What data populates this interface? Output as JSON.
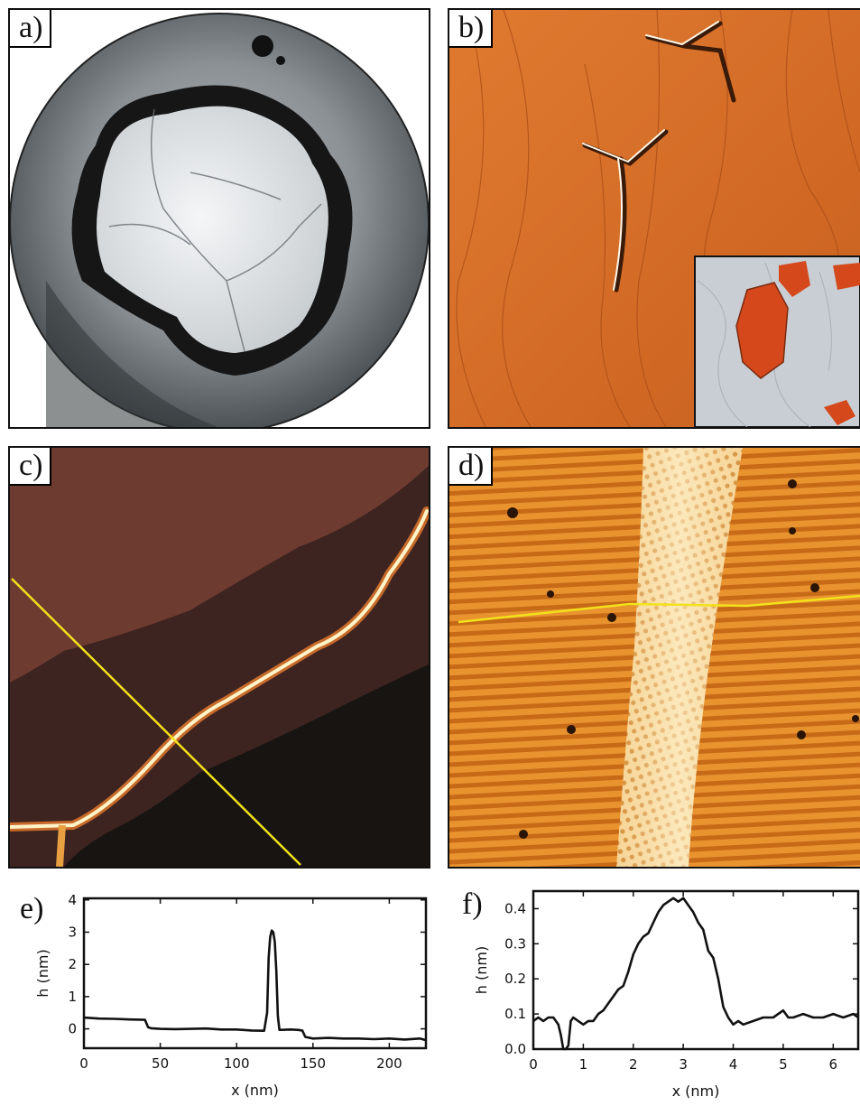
{
  "panels": {
    "a": {
      "label": "a)"
    },
    "b": {
      "label": "b)"
    },
    "c": {
      "label": "c)"
    },
    "d": {
      "label": "d)"
    }
  },
  "colors": {
    "profile_line": "#f2e21a",
    "afm_orange": "#d86a26",
    "afm_dark": "#2a1a14",
    "stm_orange": "#e08a2e"
  },
  "chart_data": [
    {
      "panel_label": "e)",
      "type": "line",
      "xlabel": "x (nm)",
      "ylabel": "h (nm)",
      "xlim": [
        0,
        224
      ],
      "ylim": [
        -0.6,
        4.05
      ],
      "xticks": [
        0,
        50,
        100,
        150,
        200
      ],
      "yticks": [
        0,
        1,
        2,
        3,
        4
      ],
      "grid": false,
      "x": [
        0,
        10,
        20,
        30,
        40,
        42,
        44,
        50,
        60,
        70,
        80,
        90,
        100,
        110,
        118,
        120,
        121,
        122,
        123,
        124,
        125,
        126,
        127,
        128,
        130,
        135,
        140,
        143,
        145,
        150,
        160,
        170,
        180,
        190,
        200,
        210,
        220,
        224
      ],
      "y": [
        0.35,
        0.32,
        0.31,
        0.29,
        0.28,
        0.05,
        0.02,
        0.0,
        -0.01,
        0.0,
        0.01,
        -0.02,
        -0.02,
        -0.05,
        -0.06,
        0.5,
        2.2,
        2.85,
        3.05,
        3.0,
        2.7,
        1.8,
        0.4,
        -0.03,
        -0.03,
        -0.02,
        -0.03,
        -0.05,
        -0.25,
        -0.3,
        -0.28,
        -0.3,
        -0.3,
        -0.32,
        -0.3,
        -0.33,
        -0.3,
        -0.35
      ]
    },
    {
      "panel_label": "f)",
      "type": "line",
      "xlabel": "x (nm)",
      "ylabel": "h (nm)",
      "xlim": [
        0,
        6.5
      ],
      "ylim": [
        0.0,
        0.45
      ],
      "xticks": [
        0,
        1,
        2,
        3,
        4,
        5,
        6
      ],
      "yticks": [
        0.0,
        0.1,
        0.2,
        0.3,
        0.4
      ],
      "grid": false,
      "x": [
        0,
        0.1,
        0.2,
        0.3,
        0.4,
        0.5,
        0.55,
        0.6,
        0.65,
        0.7,
        0.75,
        0.8,
        0.9,
        1.0,
        1.1,
        1.2,
        1.3,
        1.4,
        1.5,
        1.6,
        1.7,
        1.8,
        1.9,
        2.0,
        2.1,
        2.2,
        2.3,
        2.4,
        2.5,
        2.6,
        2.7,
        2.8,
        2.9,
        3.0,
        3.1,
        3.2,
        3.3,
        3.4,
        3.5,
        3.6,
        3.7,
        3.8,
        3.9,
        4.0,
        4.1,
        4.2,
        4.4,
        4.6,
        4.8,
        5.0,
        5.1,
        5.2,
        5.4,
        5.6,
        5.8,
        6.0,
        6.2,
        6.4,
        6.5
      ],
      "y": [
        0.08,
        0.09,
        0.08,
        0.09,
        0.09,
        0.07,
        0.04,
        0.0,
        0.0,
        0.01,
        0.08,
        0.09,
        0.08,
        0.07,
        0.08,
        0.08,
        0.1,
        0.11,
        0.13,
        0.15,
        0.17,
        0.18,
        0.22,
        0.27,
        0.3,
        0.32,
        0.33,
        0.36,
        0.39,
        0.41,
        0.42,
        0.43,
        0.42,
        0.43,
        0.41,
        0.39,
        0.36,
        0.34,
        0.28,
        0.26,
        0.2,
        0.12,
        0.09,
        0.07,
        0.08,
        0.07,
        0.08,
        0.09,
        0.09,
        0.11,
        0.09,
        0.09,
        0.1,
        0.09,
        0.09,
        0.1,
        0.09,
        0.1,
        0.09
      ]
    }
  ]
}
